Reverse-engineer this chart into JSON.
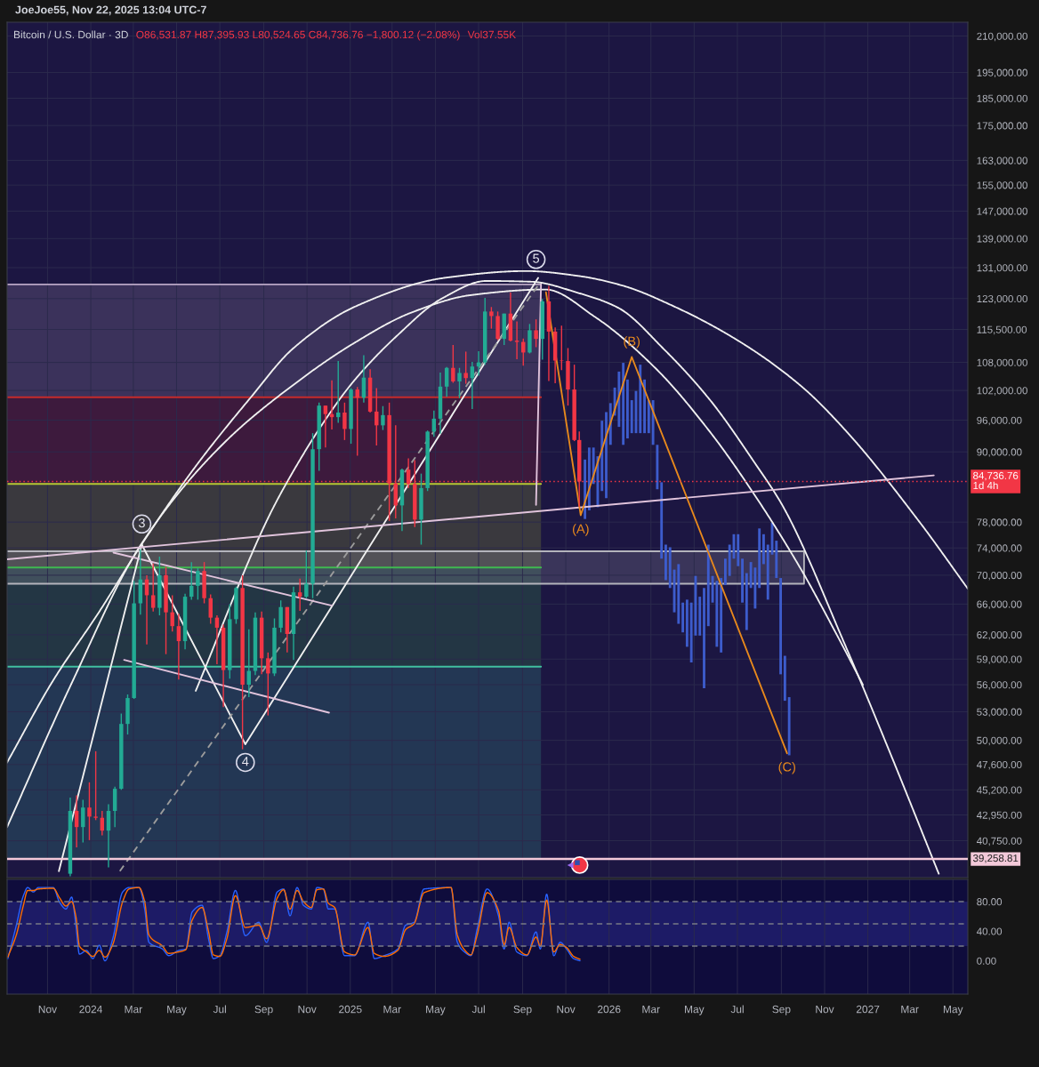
{
  "chart_data": [
    {
      "type": "candlestick",
      "title": "JoeJoe55, Nov 22, 2025 13:04 UTC-7",
      "subtitle": "Bitcoin / U.S. Dollar · 3D",
      "annotations": [
        "O86,531.87 H87,395.93 L80,524.65 C84,736.76 −1,800.12 (−2.08%)",
        "Vol37.55K",
        {
          "text": "3",
          "x": "2024-03-13",
          "y": 77700
        },
        {
          "text": "4",
          "x": "2024-08-06",
          "y": 47800
        },
        {
          "text": "5",
          "x": "2025-09-20",
          "y": 133200
        }
      ],
      "log": true,
      "grid": true,
      "tick_labels": "y",
      "xlim": [
        "2023-09-05",
        "2027-05-22"
      ],
      "ylim": [
        37800,
        216000
      ],
      "xticks": [
        {
          "value": "2023-11-01",
          "label": null
        },
        {
          "value": "2024-01-01",
          "label": null
        },
        {
          "value": "2024-03-01",
          "label": null
        },
        {
          "value": "2024-05-01",
          "label": null
        },
        {
          "value": "2024-07-01",
          "label": null
        },
        {
          "value": "2024-09-01",
          "label": null
        },
        {
          "value": "2024-11-01",
          "label": null
        },
        {
          "value": "2025-01-01",
          "label": null
        },
        {
          "value": "2025-03-01",
          "label": null
        },
        {
          "value": "2025-05-01",
          "label": null
        },
        {
          "value": "2025-07-01",
          "label": null
        },
        {
          "value": "2025-09-01",
          "label": null
        },
        {
          "value": "2025-11-01",
          "label": null
        },
        {
          "value": "2026-01-01",
          "label": null
        },
        {
          "value": "2026-03-01",
          "label": null
        },
        {
          "value": "2026-05-01",
          "label": null
        },
        {
          "value": "2026-07-01",
          "label": null
        },
        {
          "value": "2026-09-01",
          "label": null
        },
        {
          "value": "2026-11-01",
          "label": null
        },
        {
          "value": "2027-01-01",
          "label": null
        },
        {
          "value": "2027-03-01",
          "label": null
        },
        {
          "value": "2027-05-01",
          "label": null
        }
      ],
      "yticks": [
        {
          "value": 40750,
          "label": "40,750.00"
        },
        {
          "value": 42950,
          "label": "42,950.00"
        },
        {
          "value": 45200,
          "label": "45,200.00"
        },
        {
          "value": 47600,
          "label": "47,600.00"
        },
        {
          "value": 50000,
          "label": "50,000.00"
        },
        {
          "value": 53000,
          "label": "53,000.00"
        },
        {
          "value": 56000,
          "label": "56,000.00"
        },
        {
          "value": 59000,
          "label": "59,000.00"
        },
        {
          "value": 62000,
          "label": "62,000.00"
        },
        {
          "value": 66000,
          "label": "66,000.00"
        },
        {
          "value": 70000,
          "label": "70,000.00"
        },
        {
          "value": 74000,
          "label": "74,000.00"
        },
        {
          "value": 78000,
          "label": "78,000.00"
        },
        {
          "value": 90000,
          "label": "90,000.00"
        },
        {
          "value": 96000,
          "label": "96,000.00"
        },
        {
          "value": 102000,
          "label": "102,000.00"
        },
        {
          "value": 108000,
          "label": "108,000.00"
        },
        {
          "value": 115500,
          "label": "115,500.00"
        },
        {
          "value": 123000,
          "label": "123,000.00"
        },
        {
          "value": 131000,
          "label": "131,000.00"
        },
        {
          "value": 139000,
          "label": "139,000.00"
        },
        {
          "value": 147000,
          "label": "147,000.00"
        },
        {
          "value": 155000,
          "label": "155,000.00"
        },
        {
          "value": 163000,
          "label": "163,000.00"
        },
        {
          "value": 175000,
          "label": "175,000.00"
        },
        {
          "value": 185000,
          "label": "185,000.00"
        },
        {
          "value": 195000,
          "label": "195,000.00"
        },
        {
          "value": 210000,
          "label": "210,000.00"
        }
      ],
      "ref_lines": [
        {
          "axis": "y",
          "value": 84736.76,
          "label": "84,736.76\n1d 4h",
          "color": "#f23645",
          "line_style": "dotted"
        },
        {
          "axis": "y",
          "value": 39258.81,
          "label": "39,258.81",
          "color": "#f3c9d9",
          "line_style": "solid"
        }
      ],
      "series": [
        {
          "type": "line",
          "x": [
            "2023-09-05",
            "2025-09-27"
          ],
          "values": [
            126600,
            126600
          ],
          "lower": [
            100600,
            100600
          ],
          "upper": [
            126600,
            126600
          ],
          "color": "#b9a6c4"
        },
        {
          "type": "line",
          "x": [
            "2023-09-05",
            "2025-09-27"
          ],
          "values": [
            100600,
            100600
          ],
          "lower": [
            84300,
            84300
          ],
          "upper": [
            100600,
            100600
          ],
          "color": "#c42b2b"
        },
        {
          "type": "line",
          "x": [
            "2023-09-05",
            "2025-09-27"
          ],
          "values": [
            84300,
            84300
          ],
          "lower": [
            71100,
            71100
          ],
          "upper": [
            84300,
            84300
          ],
          "color": "#b5c832"
        },
        {
          "type": "line",
          "x": [
            "2023-09-05",
            "2025-09-27"
          ],
          "values": [
            71100,
            71100
          ],
          "lower": [
            58100,
            58100
          ],
          "upper": [
            71100,
            71100
          ],
          "color": "#3fb950"
        },
        {
          "type": "line",
          "x": [
            "2023-09-05",
            "2025-09-27"
          ],
          "values": [
            58100,
            58100
          ],
          "lower": [
            39258.81,
            39258.81
          ],
          "upper": [
            58100,
            58100
          ],
          "color": "#40c0a0"
        },
        {
          "type": "line",
          "x": [
            "2023-09-05",
            "2026-10-03"
          ],
          "values": [
            73500,
            73500
          ],
          "lower": [
            68800,
            68800
          ],
          "upper": [
            73500,
            73500
          ],
          "color": "#b4b4bc"
        },
        {
          "type": "line",
          "x": [
            "2023-09-05",
            "2026-10-03",
            "2026-10-03"
          ],
          "values": [
            68800,
            68800,
            73500
          ],
          "color": "#b4b4bc"
        },
        {
          "type": "candlestick",
          "x": [
            "2023-12-03",
            "2023-12-12",
            "2023-12-21",
            "2023-12-30",
            "2024-01-08",
            "2024-01-17",
            "2024-01-26",
            "2024-02-04",
            "2024-02-13",
            "2024-02-22",
            "2024-03-02",
            "2024-03-11",
            "2024-03-20",
            "2024-03-29",
            "2024-04-07",
            "2024-04-16",
            "2024-04-25",
            "2024-05-04",
            "2024-05-13",
            "2024-05-22",
            "2024-05-31",
            "2024-06-09",
            "2024-06-18",
            "2024-06-27",
            "2024-07-06",
            "2024-07-15",
            "2024-07-24",
            "2024-08-02",
            "2024-08-11",
            "2024-08-20",
            "2024-08-29",
            "2024-09-07",
            "2024-09-16",
            "2024-09-25",
            "2024-10-04",
            "2024-10-13",
            "2024-10-22",
            "2024-10-31",
            "2024-11-09",
            "2024-11-18",
            "2024-11-27",
            "2024-12-06",
            "2024-12-15",
            "2024-12-24",
            "2025-01-02",
            "2025-01-11",
            "2025-01-20",
            "2025-01-29",
            "2025-02-07",
            "2025-02-16",
            "2025-02-25",
            "2025-03-06",
            "2025-03-15",
            "2025-03-24",
            "2025-04-02",
            "2025-04-11",
            "2025-04-20",
            "2025-04-29",
            "2025-05-08",
            "2025-05-17",
            "2025-05-26",
            "2025-06-04",
            "2025-06-13",
            "2025-06-22",
            "2025-07-01",
            "2025-07-10",
            "2025-07-19",
            "2025-07-28",
            "2025-08-06",
            "2025-08-15",
            "2025-08-24",
            "2025-09-02",
            "2025-09-11",
            "2025-09-20",
            "2025-09-29",
            "2025-10-08",
            "2025-10-17",
            "2025-10-26",
            "2025-11-04",
            "2025-11-13",
            "2025-11-20"
          ],
          "ohlc": [
            [
              38100,
              44500,
              37900,
              43300
            ],
            [
              43300,
              44700,
              40200,
              41900
            ],
            [
              41900,
              44300,
              40600,
              43600
            ],
            [
              43600,
              45900,
              40800,
              42800
            ],
            [
              42800,
              48900,
              42500,
              42700
            ],
            [
              42700,
              43300,
              41200,
              41600
            ],
            [
              41600,
              43900,
              38600,
              43300
            ],
            [
              43300,
              45500,
              41900,
              45300
            ],
            [
              45300,
              52800,
              45200,
              51700
            ],
            [
              51700,
              54900,
              50600,
              54500
            ],
            [
              54500,
              69200,
              54400,
              66100
            ],
            [
              66100,
              73800,
              64600,
              69400
            ],
            [
              69400,
              70000,
              60800,
              67200
            ],
            [
              67200,
              71700,
              65000,
              65500
            ],
            [
              65500,
              72700,
              64500,
              70000
            ],
            [
              70000,
              71200,
              59600,
              64900
            ],
            [
              64900,
              67200,
              62400,
              63100
            ],
            [
              63100,
              64700,
              56600,
              61200
            ],
            [
              61200,
              67400,
              60200,
              67000
            ],
            [
              67000,
              71900,
              66600,
              68500
            ],
            [
              68500,
              71000,
              66600,
              70600
            ],
            [
              70600,
              71900,
              66100,
              66800
            ],
            [
              66800,
              67300,
              63400,
              64200
            ],
            [
              64200,
              64500,
              58400,
              62900
            ],
            [
              62900,
              63300,
              53500,
              57700
            ],
            [
              57700,
              66000,
              56700,
              64000
            ],
            [
              64000,
              68400,
              63400,
              68200
            ],
            [
              68200,
              70000,
              49100,
              56000
            ],
            [
              56000,
              62700,
              54600,
              57600
            ],
            [
              57600,
              64900,
              57100,
              64200
            ],
            [
              64200,
              65000,
              57200,
              59100
            ],
            [
              59100,
              59800,
              52600,
              57300
            ],
            [
              57300,
              64100,
              57000,
              62900
            ],
            [
              62900,
              66500,
              62300,
              65600
            ],
            [
              65600,
              65600,
              59800,
              62100
            ],
            [
              62100,
              68400,
              58900,
              67600
            ],
            [
              67600,
              69500,
              65100,
              67000
            ],
            [
              67000,
              73600,
              66800,
              68800
            ],
            [
              68800,
              93500,
              66800,
              90500
            ],
            [
              90500,
              99500,
              86600,
              98900
            ],
            [
              98900,
              98900,
              90800,
              97200
            ],
            [
              97200,
              104100,
              94200,
              96600
            ],
            [
              96600,
              108300,
              95500,
              97500
            ],
            [
              97500,
              99500,
              92200,
              94300
            ],
            [
              94300,
              102500,
              91500,
              102200
            ],
            [
              102200,
              102700,
              89300,
              100500
            ],
            [
              100500,
              109600,
              99500,
              104700
            ],
            [
              104700,
              106500,
              97500,
              97700
            ],
            [
              97700,
              102500,
              91200,
              95000
            ],
            [
              95000,
              98800,
              94100,
              97000
            ],
            [
              97000,
              99500,
              78200,
              84400
            ],
            [
              84400,
              95000,
              78600,
              80700
            ],
            [
              80700,
              87000,
              76600,
              86800
            ],
            [
              86800,
              88800,
              83600,
              84300
            ],
            [
              84300,
              88500,
              77200,
              78400
            ],
            [
              78400,
              86100,
              74500,
              83600
            ],
            [
              83600,
              94000,
              83100,
              93800
            ],
            [
              93800,
              97900,
              92800,
              96300
            ],
            [
              96300,
              105800,
              93400,
              102800
            ],
            [
              102800,
              107000,
              100700,
              106800
            ],
            [
              106800,
              111900,
              103600,
              103900
            ],
            [
              103900,
              106800,
              100400,
              105700
            ],
            [
              105700,
              110400,
              103400,
              104600
            ],
            [
              104600,
              108100,
              98200,
              107100
            ],
            [
              107100,
              110500,
              105100,
              108000
            ],
            [
              108000,
              123200,
              107500,
              119800
            ],
            [
              119800,
              120900,
              115700,
              118700
            ],
            [
              118700,
              119800,
              113000,
              113300
            ],
            [
              113300,
              119300,
              111900,
              119300
            ],
            [
              119300,
              124500,
              112700,
              112900
            ],
            [
              112900,
              117400,
              108700,
              112600
            ],
            [
              112600,
              113400,
              107300,
              110200
            ],
            [
              110200,
              116800,
              110000,
              115300
            ],
            [
              115300,
              117900,
              111400,
              113300
            ],
            [
              113300,
              122900,
              108600,
              122300
            ],
            [
              122300,
              126200,
              104000,
              115000
            ],
            [
              115000,
              116000,
              103500,
              108400
            ],
            [
              108400,
              116400,
              106300,
              108300
            ],
            [
              108300,
              111200,
              98900,
              102200
            ],
            [
              102200,
              107500,
              92000,
              92200
            ],
            [
              92200,
              93800,
              80500,
              84736.76
            ]
          ],
          "colors": [
            "#22ab94",
            "#f23645",
            "#22ab94",
            "#f23645",
            "#f23645",
            "#f23645",
            "#22ab94",
            "#22ab94",
            "#22ab94",
            "#22ab94",
            "#22ab94",
            "#22ab94",
            "#f23645",
            "#f23645",
            "#22ab94",
            "#f23645",
            "#f23645",
            "#f23645",
            "#22ab94",
            "#22ab94",
            "#22ab94",
            "#f23645",
            "#f23645",
            "#f23645",
            "#f23645",
            "#22ab94",
            "#22ab94",
            "#f23645",
            "#22ab94",
            "#22ab94",
            "#f23645",
            "#f23645",
            "#22ab94",
            "#22ab94",
            "#f23645",
            "#22ab94",
            "#f23645",
            "#22ab94",
            "#22ab94",
            "#22ab94",
            "#f23645",
            "#f23645",
            "#22ab94",
            "#f23645",
            "#22ab94",
            "#f23645",
            "#22ab94",
            "#f23645",
            "#f23645",
            "#22ab94",
            "#f23645",
            "#f23645",
            "#22ab94",
            "#f23645",
            "#f23645",
            "#22ab94",
            "#22ab94",
            "#22ab94",
            "#22ab94",
            "#22ab94",
            "#f23645",
            "#22ab94",
            "#f23645",
            "#22ab94",
            "#22ab94",
            "#22ab94",
            "#f23645",
            "#f23645",
            "#22ab94",
            "#f23645",
            "#f23645",
            "#f23645",
            "#22ab94",
            "#f23645",
            "#22ab94",
            "#f23645",
            "#f23645",
            "#f23645",
            "#f23645",
            "#f23645",
            "#f23645"
          ]
        },
        {
          "type": "bar",
          "color": "#3d5ccc",
          "x": [
            "2025-11-28",
            "2025-12-04",
            "2025-12-10",
            "2025-12-16",
            "2025-12-22",
            "2025-12-28",
            "2026-01-03",
            "2026-01-09",
            "2026-01-15",
            "2026-01-21",
            "2026-01-27",
            "2026-02-02",
            "2026-02-08",
            "2026-02-14",
            "2026-02-20",
            "2026-02-26",
            "2026-03-04",
            "2026-03-10",
            "2026-03-16",
            "2026-03-22",
            "2026-03-28",
            "2026-04-03",
            "2026-04-09",
            "2026-04-15",
            "2026-04-21",
            "2026-04-27",
            "2026-05-03",
            "2026-05-09",
            "2026-05-15",
            "2026-05-21",
            "2026-05-27",
            "2026-06-02",
            "2026-06-08",
            "2026-06-14",
            "2026-06-20",
            "2026-06-26",
            "2026-07-02",
            "2026-07-08",
            "2026-07-14",
            "2026-07-20",
            "2026-07-26",
            "2026-08-01",
            "2026-08-07",
            "2026-08-13",
            "2026-08-19",
            "2026-08-25",
            "2026-08-31",
            "2026-09-06",
            "2026-09-12"
          ],
          "base": [
            78500,
            79900,
            84300,
            80400,
            83100,
            81900,
            91300,
            96900,
            94700,
            91300,
            92500,
            93500,
            93500,
            93500,
            93500,
            93500,
            91300,
            83400,
            72400,
            69300,
            68200,
            64900,
            63400,
            62300,
            60500,
            58600,
            61900,
            61900,
            55600,
            63100,
            66200,
            60500,
            59800,
            68600,
            69900,
            72400,
            71300,
            66200,
            62600,
            68200,
            65400,
            68200,
            71600,
            66600,
            73000,
            69600,
            57200,
            54200,
            48500
          ],
          "values": [
            10100,
            10900,
            6500,
            8800,
            12800,
            15700,
            8100,
            5700,
            11300,
            16600,
            11800,
            6500,
            8400,
            14000,
            10800,
            6500,
            8700,
            7900,
            12200,
            5200,
            5900,
            5900,
            8200,
            3900,
            6100,
            7600,
            8000,
            5100,
            12600,
            11400,
            3700,
            8700,
            9800,
            3800,
            4600,
            3700,
            4800,
            6200,
            7700,
            3700,
            5700,
            8800,
            4500,
            7900,
            4900,
            5500,
            12400,
            5200,
            6100
          ]
        },
        {
          "type": "line",
          "color": "#f0f0f0",
          "x": [
            "2023-09-05",
            "2023-11-09",
            "2024-01-11",
            "2024-03-13",
            "2024-05-28",
            "2024-08-11",
            "2024-10-13",
            "2025-01-09",
            "2025-05-14",
            "2025-09-06",
            "2025-11-19",
            "2026-01-20",
            "2026-04-02",
            "2026-07-01",
            "2026-09-29",
            "2026-12-02",
            "2027-03-17",
            "2027-05-22"
          ],
          "values": [
            47800,
            56500,
            64700,
            74600,
            87400,
            100100,
            111200,
            121100,
            128300,
            130100,
            128800,
            126300,
            121100,
            113000,
            102900,
            93800,
            77700,
            68100
          ]
        },
        {
          "type": "line",
          "color": "#f0f0f0",
          "x": [
            "2023-09-05",
            "2023-12-04",
            "2024-03-10",
            "2024-07-05",
            "2024-10-13",
            "2025-01-05",
            "2025-03-29",
            "2025-06-21",
            "2025-10-03",
            "2025-12-12",
            "2026-03-07",
            "2026-05-23",
            "2026-07-26",
            "2026-09-29",
            "2026-11-17",
            "2026-12-25"
          ],
          "values": [
            41900,
            56000,
            74200,
            91400,
            103200,
            112200,
            119600,
            123900,
            125300,
            118500,
            106800,
            93800,
            82300,
            70800,
            62200,
            56000
          ]
        },
        {
          "type": "line",
          "color": "#f0f0f0",
          "x": [
            "2024-05-28",
            "2024-09-09",
            "2024-10-13",
            "2024-11-23",
            "2025-01-05",
            "2025-03-09",
            "2025-05-11",
            "2025-07-12",
            "2025-09-13",
            "2025-11-19",
            "2026-01-14",
            "2026-03-19",
            "2026-05-23",
            "2026-07-26",
            "2026-09-03",
            "2026-11-30",
            "2027-02-01",
            "2027-04-11"
          ],
          "values": [
            55300,
            79100,
            86600,
            95300,
            103800,
            114200,
            123100,
            127500,
            127300,
            124400,
            120700,
            111000,
            100100,
            87900,
            80600,
            60700,
            48800,
            38100
          ]
        },
        {
          "type": "line",
          "color": "#f0f0f0",
          "x": [
            "2023-11-17",
            "2024-03-13"
          ],
          "values": [
            38300,
            74500
          ]
        },
        {
          "type": "line",
          "color": "#f0f0f0",
          "x": [
            "2024-03-13",
            "2024-08-06",
            "2025-09-23"
          ],
          "values": [
            74500,
            49600,
            128300
          ]
        },
        {
          "type": "line",
          "color": "#9c9c9c",
          "line_style": "dashed",
          "x": [
            "2024-02-11",
            "2025-09-24"
          ],
          "values": [
            38300,
            126600
          ]
        },
        {
          "type": "line",
          "color": "#e1c4dc",
          "x": [
            "2023-09-05",
            "2027-04-04"
          ],
          "values": [
            72300,
            85800
          ]
        },
        {
          "type": "line",
          "color": "#e1c4dc",
          "x": [
            "2024-02-02",
            "2024-12-06"
          ],
          "values": [
            73300,
            65800
          ]
        },
        {
          "type": "line",
          "color": "#e1c4dc",
          "x": [
            "2024-02-17",
            "2024-12-02"
          ],
          "values": [
            58900,
            52900
          ]
        },
        {
          "type": "line",
          "color": "#e1c4dc",
          "x": [
            "2025-09-20",
            "2025-09-27"
          ],
          "values": [
            80800,
            126600
          ]
        },
        {
          "type": "line",
          "color": "#e8891c",
          "x": [
            "2025-10-04",
            "2025-11-22",
            "2026-02-02",
            "2026-09-09"
          ],
          "values": [
            124600,
            79100,
            109200,
            48700
          ],
          "value_labels": [
            null,
            "(A)",
            "(B)",
            "(C)"
          ]
        }
      ]
    },
    {
      "type": "line",
      "grid": "x",
      "xlim": [
        "2023-09-05",
        "2027-05-22"
      ],
      "ylim": [
        -45,
        110
      ],
      "xticks": [
        {
          "value": "2023-11-01",
          "label": "Nov"
        },
        {
          "value": "2024-01-01",
          "label": "2024"
        },
        {
          "value": "2024-03-01",
          "label": "Mar"
        },
        {
          "value": "2024-05-01",
          "label": "May"
        },
        {
          "value": "2024-07-01",
          "label": "Jul"
        },
        {
          "value": "2024-09-01",
          "label": "Sep"
        },
        {
          "value": "2024-11-01",
          "label": "Nov"
        },
        {
          "value": "2025-01-01",
          "label": "2025"
        },
        {
          "value": "2025-03-01",
          "label": "Mar"
        },
        {
          "value": "2025-05-01",
          "label": "May"
        },
        {
          "value": "2025-07-01",
          "label": "Jul"
        },
        {
          "value": "2025-09-01",
          "label": "Sep"
        },
        {
          "value": "2025-11-01",
          "label": "Nov"
        },
        {
          "value": "2026-01-01",
          "label": "2026"
        },
        {
          "value": "2026-03-01",
          "label": "Mar"
        },
        {
          "value": "2026-05-01",
          "label": "May"
        },
        {
          "value": "2026-07-01",
          "label": "Jul"
        },
        {
          "value": "2026-09-01",
          "label": "Sep"
        },
        {
          "value": "2026-11-01",
          "label": "Nov"
        },
        {
          "value": "2027-01-01",
          "label": "2027"
        },
        {
          "value": "2027-03-01",
          "label": "Mar"
        },
        {
          "value": "2027-05-01",
          "label": "May"
        }
      ],
      "yticks": [
        {
          "value": 0,
          "label": "0.00"
        },
        {
          "value": 40,
          "label": "40.00"
        },
        {
          "value": 80,
          "label": "80.00"
        }
      ],
      "bands": [
        {
          "axis": "y",
          "from": 20,
          "to": 80,
          "color": "#1d1b66"
        }
      ],
      "ref_lines": [
        {
          "axis": "y",
          "value": 80,
          "color": "#787b86",
          "line_style": "dashed"
        },
        {
          "axis": "y",
          "value": 50,
          "color": "#787b86",
          "line_style": "dashed"
        },
        {
          "axis": "y",
          "value": 20,
          "color": "#787b86",
          "line_style": "dashed"
        }
      ],
      "x": [
        "2023-09-06",
        "2023-09-18",
        "2023-09-28",
        "2023-10-04",
        "2023-10-12",
        "2023-10-19",
        "2023-11-09",
        "2023-11-18",
        "2023-11-27",
        "2023-12-05",
        "2023-12-11",
        "2023-12-16",
        "2023-12-26",
        "2024-01-04",
        "2024-01-13",
        "2024-01-21",
        "2024-02-01",
        "2024-02-15",
        "2024-02-24",
        "2024-03-09",
        "2024-03-17",
        "2024-03-23",
        "2024-04-11",
        "2024-04-20",
        "2024-05-04",
        "2024-05-14",
        "2024-05-23",
        "2024-06-06",
        "2024-06-15",
        "2024-06-22",
        "2024-07-01",
        "2024-07-11",
        "2024-07-23",
        "2024-08-06",
        "2024-08-25",
        "2024-09-05",
        "2024-09-20",
        "2024-09-29",
        "2024-10-08",
        "2024-10-18",
        "2024-10-27",
        "2024-11-07",
        "2024-11-15",
        "2024-11-24",
        "2024-12-01",
        "2024-12-10",
        "2024-12-24",
        "2025-01-07",
        "2025-01-26",
        "2025-02-04",
        "2025-02-18",
        "2025-03-09",
        "2025-03-20",
        "2025-04-01",
        "2025-04-15",
        "2025-05-23",
        "2025-06-01",
        "2025-06-11",
        "2025-06-20",
        "2025-06-29",
        "2025-07-13",
        "2025-07-29",
        "2025-08-06",
        "2025-08-13",
        "2025-08-24",
        "2025-09-07",
        "2025-09-20",
        "2025-09-26",
        "2025-10-05",
        "2025-10-15",
        "2025-10-24",
        "2025-11-02",
        "2025-11-12",
        "2025-11-21"
      ],
      "series": [
        {
          "color": "#2962ff",
          "values": [
            3,
            48,
            88,
            99,
            93,
            99,
            99,
            79,
            70,
            86,
            48,
            9,
            14,
            3,
            21,
            0,
            30,
            93,
            99,
            99,
            70,
            25,
            16,
            7,
            14,
            16,
            66,
            75,
            30,
            3,
            7,
            39,
            95,
            34,
            52,
            25,
            93,
            97,
            61,
            99,
            75,
            70,
            99,
            97,
            70,
            70,
            7,
            7,
            52,
            3,
            7,
            16,
            48,
            52,
            97,
            99,
            25,
            12,
            7,
            43,
            97,
            61,
            16,
            52,
            12,
            7,
            39,
            16,
            90,
            7,
            25,
            16,
            3,
            0
          ]
        },
        {
          "color": "#ff6d00",
          "values": [
            5,
            35,
            75,
            95,
            95,
            97,
            98,
            85,
            74,
            80,
            60,
            20,
            12,
            6,
            14,
            5,
            22,
            80,
            97,
            99,
            80,
            35,
            20,
            10,
            12,
            15,
            55,
            72,
            40,
            8,
            6,
            30,
            88,
            45,
            48,
            30,
            85,
            96,
            70,
            95,
            80,
            72,
            96,
            97,
            78,
            72,
            12,
            8,
            45,
            10,
            6,
            14,
            42,
            50,
            92,
            99,
            35,
            15,
            8,
            35,
            92,
            68,
            22,
            45,
            18,
            8,
            32,
            20,
            82,
            12,
            22,
            18,
            6,
            2
          ]
        }
      ]
    }
  ]
}
